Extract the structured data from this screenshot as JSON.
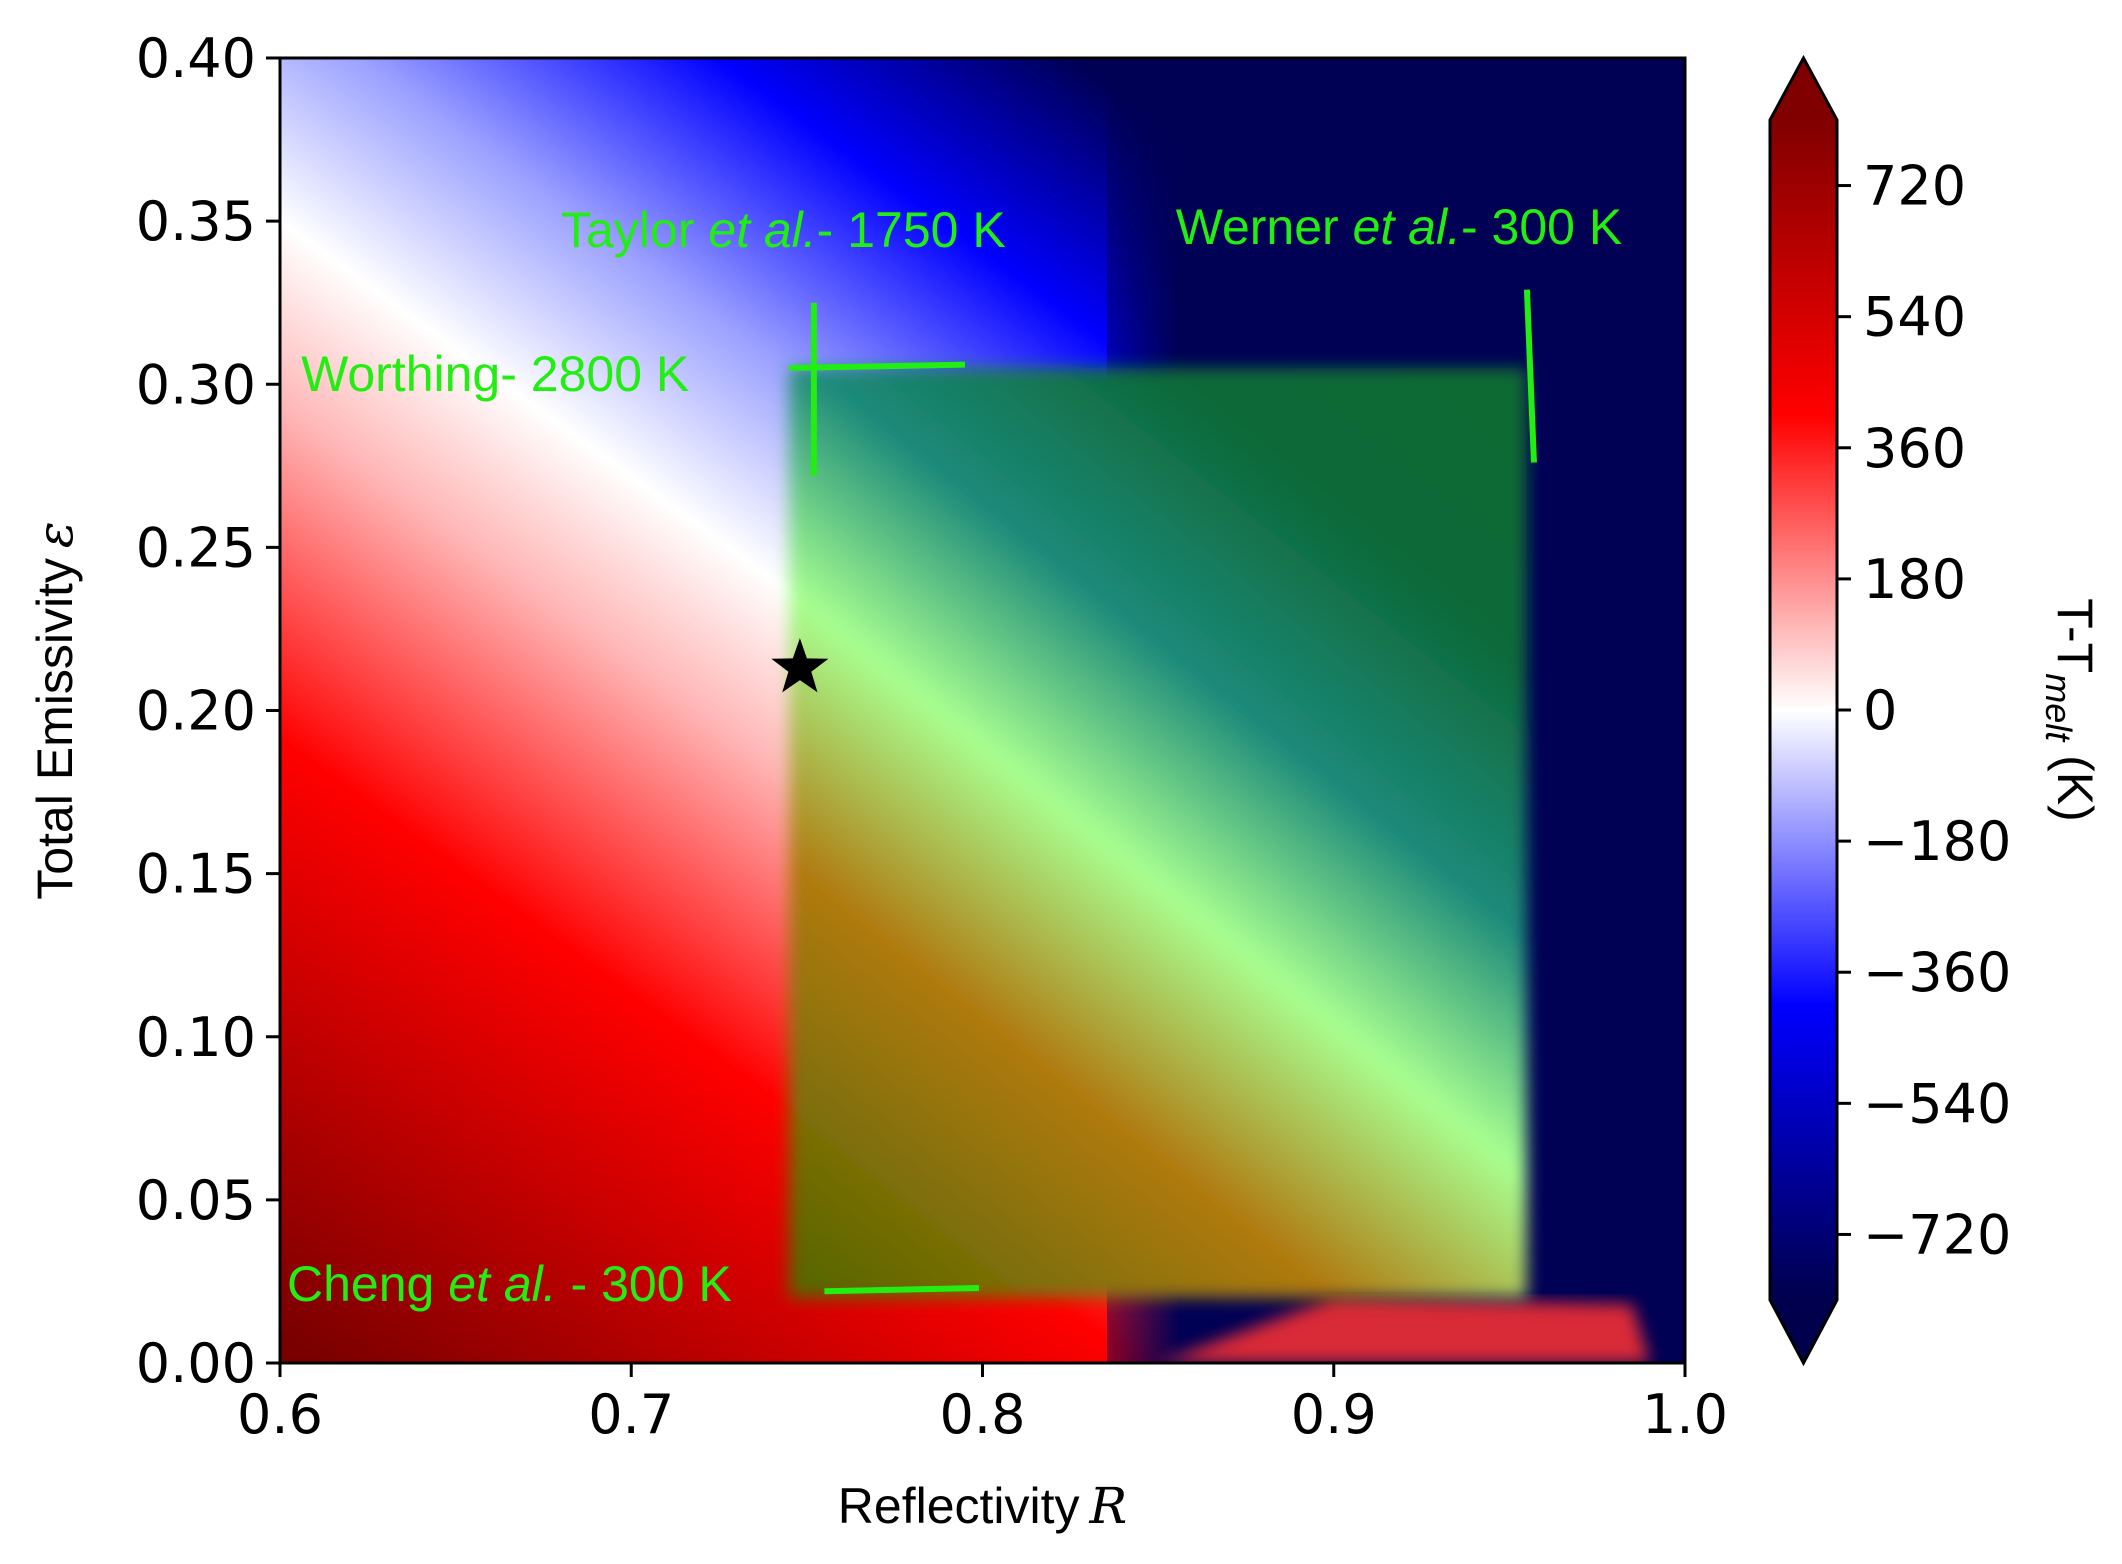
{
  "chart_data": {
    "type": "heatmap",
    "xlabel": "Reflectivity",
    "xlabel_symbol": "R",
    "ylabel": "Total Emissivity",
    "ylabel_symbol": "ε",
    "xlim": [
      0.6,
      1.0
    ],
    "ylim": [
      0.0,
      0.4
    ],
    "x_ticks": [
      "0.6",
      "0.7",
      "0.8",
      "0.9",
      "1.0"
    ],
    "x_tick_values": [
      0.6,
      0.7,
      0.8,
      0.9,
      1.0
    ],
    "y_ticks": [
      "0.00",
      "0.05",
      "0.10",
      "0.15",
      "0.20",
      "0.25",
      "0.30",
      "0.35",
      "0.40"
    ],
    "y_tick_values": [
      0.0,
      0.05,
      0.1,
      0.15,
      0.2,
      0.25,
      0.3,
      0.35,
      0.4
    ],
    "colorbar": {
      "label_main": "T-T",
      "label_sub": "melt",
      "label_unit": " (K)",
      "range": [
        -810,
        810
      ],
      "ticks": [
        "720",
        "540",
        "360",
        "180",
        "0",
        "−180",
        "−360",
        "−540",
        "−720"
      ],
      "tick_values": [
        720,
        540,
        360,
        180,
        0,
        -180,
        -360,
        -540,
        -720
      ],
      "colormap": "seismic",
      "extend": "both"
    },
    "shaded_region": {
      "x_range": [
        0.745,
        0.955
      ],
      "y_range": [
        0.02,
        0.305
      ],
      "color": "#00b000"
    },
    "marker": {
      "symbol": "star",
      "x": 0.748,
      "y": 0.213,
      "color": "#000000"
    },
    "measurement_lines": [
      {
        "name": "Taylor",
        "x": [
          0.752,
          0.752
        ],
        "y": [
          0.325,
          0.272
        ]
      },
      {
        "name": "Worthing",
        "x": [
          0.745,
          0.795
        ],
        "y": [
          0.305,
          0.306
        ]
      },
      {
        "name": "Werner",
        "x": [
          0.955,
          0.957
        ],
        "y": [
          0.329,
          0.276
        ]
      },
      {
        "name": "Cheng",
        "x": [
          0.755,
          0.799
        ],
        "y": [
          0.022,
          0.023
        ]
      }
    ],
    "annotations": [
      {
        "name": "taylor",
        "parts": [
          "Taylor ",
          "et al.",
          "- 1750 K"
        ],
        "x": 0.68,
        "y": 0.342
      },
      {
        "name": "werner",
        "parts": [
          "Werner ",
          "et al.",
          "- 300 K"
        ],
        "x": 0.855,
        "y": 0.343
      },
      {
        "name": "worthing",
        "parts": [
          "Worthing- 2800 K",
          "",
          ""
        ],
        "x": 0.606,
        "y": 0.298
      },
      {
        "name": "cheng",
        "parts": [
          "Cheng ",
          "et al.",
          " - 300 K"
        ],
        "x": 0.602,
        "y": 0.019
      }
    ],
    "annotation_color": "#22ee11",
    "grid": false
  }
}
